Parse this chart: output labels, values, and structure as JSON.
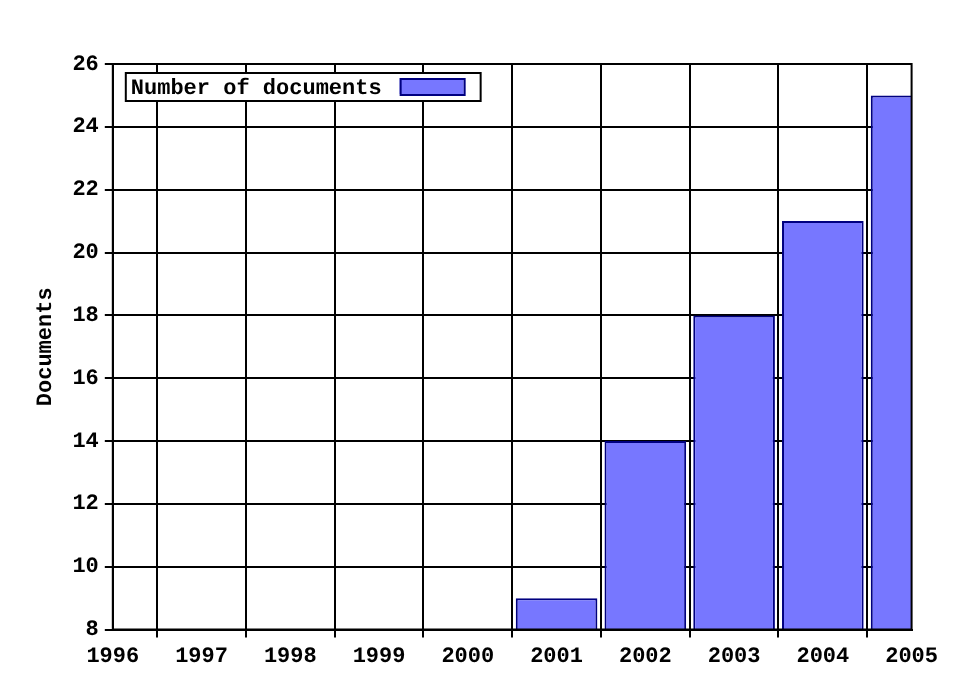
{
  "chart_data": {
    "type": "bar",
    "ylabel": "Documents",
    "x": [
      2001,
      2002,
      2003,
      2004,
      2005
    ],
    "series": [
      {
        "name": "Number of documents",
        "color": "#7777ff",
        "values": [
          9,
          14,
          18,
          21,
          25
        ]
      }
    ],
    "xlim": [
      1996,
      2005
    ],
    "xticks": [
      1996,
      1997,
      1998,
      1999,
      2000,
      2001,
      2002,
      2003,
      2004,
      2005
    ],
    "ylim": [
      8,
      26
    ],
    "yticks": [
      8,
      10,
      12,
      14,
      16,
      18,
      20,
      22,
      24,
      26
    ],
    "grid": true,
    "legend": "top left"
  }
}
